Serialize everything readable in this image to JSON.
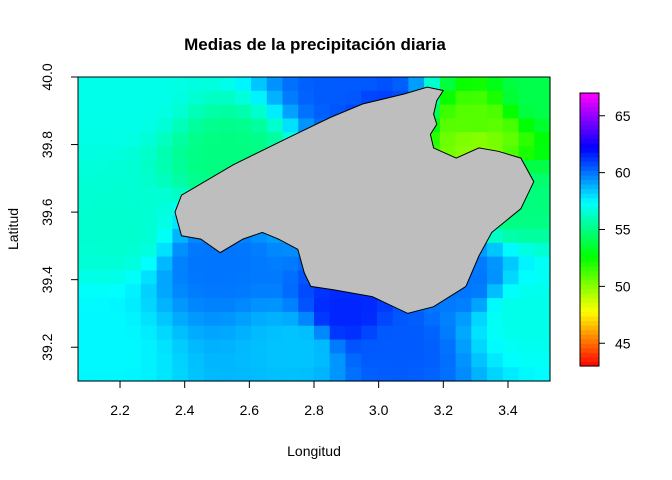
{
  "chart_data": {
    "type": "heatmap",
    "title": "Medias de la precipitación diaria",
    "xlabel": "Longitud",
    "ylabel": "Latitud",
    "xlim": [
      2.07,
      3.53
    ],
    "ylim": [
      39.1,
      40.0
    ],
    "x_ticks": [
      "2.2",
      "2.4",
      "2.6",
      "2.8",
      "3.0",
      "3.2",
      "3.4"
    ],
    "y_ticks": [
      "39.2",
      "39.4",
      "39.6",
      "39.8",
      "40.0"
    ],
    "legend": {
      "position": "right",
      "range": [
        43,
        67
      ],
      "ticks": [
        "45",
        "50",
        "55",
        "60",
        "65"
      ],
      "palette": "rainbow red-yellow-green-cyan-blue-magenta"
    },
    "land_color": "#bebebe",
    "field_nodes": [
      {
        "lon": 2.1,
        "lat": 39.2,
        "value": 57.5
      },
      {
        "lon": 2.2,
        "lat": 39.55,
        "value": 56.5
      },
      {
        "lon": 2.2,
        "lat": 39.95,
        "value": 57
      },
      {
        "lon": 2.55,
        "lat": 39.75,
        "value": 55
      },
      {
        "lon": 2.5,
        "lat": 39.45,
        "value": 60
      },
      {
        "lon": 2.9,
        "lat": 39.98,
        "value": 60.5
      },
      {
        "lon": 3.0,
        "lat": 39.9,
        "value": 61
      },
      {
        "lon": 2.9,
        "lat": 39.3,
        "value": 61.5
      },
      {
        "lon": 3.05,
        "lat": 39.2,
        "value": 60.5
      },
      {
        "lon": 2.75,
        "lat": 39.2,
        "value": 58.5
      },
      {
        "lon": 3.3,
        "lat": 39.8,
        "value": 50
      },
      {
        "lon": 3.3,
        "lat": 39.85,
        "value": 51
      },
      {
        "lon": 3.4,
        "lat": 39.65,
        "value": 55
      },
      {
        "lon": 3.5,
        "lat": 39.95,
        "value": 54
      },
      {
        "lon": 3.25,
        "lat": 39.4,
        "value": 60
      },
      {
        "lon": 3.45,
        "lat": 39.3,
        "value": 57
      }
    ],
    "coastline": [
      [
        2.37,
        39.6
      ],
      [
        2.39,
        39.65
      ],
      [
        2.55,
        39.74
      ],
      [
        2.72,
        39.82
      ],
      [
        2.85,
        39.88
      ],
      [
        2.95,
        39.92
      ],
      [
        3.08,
        39.95
      ],
      [
        3.15,
        39.97
      ],
      [
        3.2,
        39.96
      ],
      [
        3.18,
        39.93
      ],
      [
        3.17,
        39.89
      ],
      [
        3.18,
        39.86
      ],
      [
        3.16,
        39.83
      ],
      [
        3.17,
        39.79
      ],
      [
        3.24,
        39.76
      ],
      [
        3.31,
        39.79
      ],
      [
        3.37,
        39.78
      ],
      [
        3.44,
        39.76
      ],
      [
        3.48,
        39.69
      ],
      [
        3.44,
        39.61
      ],
      [
        3.35,
        39.54
      ],
      [
        3.31,
        39.47
      ],
      [
        3.27,
        39.38
      ],
      [
        3.17,
        39.32
      ],
      [
        3.09,
        39.3
      ],
      [
        2.98,
        39.35
      ],
      [
        2.86,
        39.37
      ],
      [
        2.79,
        39.38
      ],
      [
        2.77,
        39.42
      ],
      [
        2.75,
        39.49
      ],
      [
        2.69,
        39.52
      ],
      [
        2.64,
        39.54
      ],
      [
        2.58,
        39.52
      ],
      [
        2.51,
        39.48
      ],
      [
        2.45,
        39.52
      ],
      [
        2.39,
        39.53
      ]
    ]
  }
}
